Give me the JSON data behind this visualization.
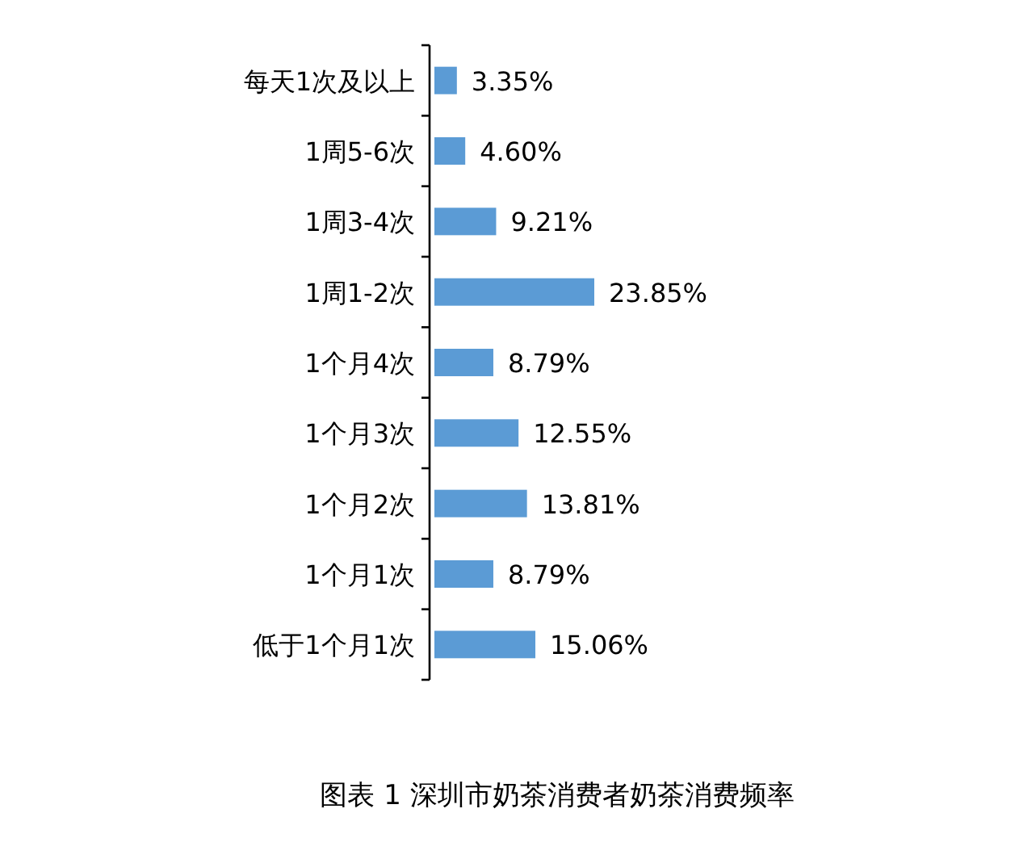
{
  "chart_data": {
    "type": "bar",
    "orientation": "horizontal",
    "categories": [
      "每天1次及以上",
      "1周5-6次",
      "1周3-4次",
      "1周1-2次",
      "1个月4次",
      "1个月3次",
      "1个月2次",
      "1个月1次",
      "低于1个月1次"
    ],
    "values": [
      3.35,
      4.6,
      9.21,
      23.85,
      8.79,
      12.55,
      13.81,
      8.79,
      15.06
    ],
    "value_labels": [
      "3.35%",
      "4.60%",
      "9.21%",
      "23.85%",
      "8.79%",
      "12.55%",
      "13.81%",
      "8.79%",
      "15.06%"
    ],
    "color": "#5b9bd5",
    "annotations": [
      "图表 1  深圳市奶茶消费者奶茶消费频率"
    ]
  }
}
